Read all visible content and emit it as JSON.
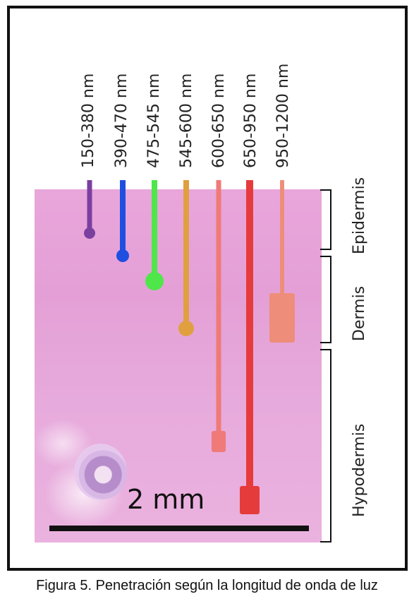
{
  "figure": {
    "wavelength_bands": [
      {
        "label": "150-380 nm",
        "color": "#7b3fa0",
        "depth_layer": "Epidermis",
        "tip": "dot"
      },
      {
        "label": "390-470 nm",
        "color": "#1f4fe0",
        "depth_layer": "Epidermis",
        "tip": "dot"
      },
      {
        "label": "475-545 nm",
        "color": "#4fe64a",
        "depth_layer": "Dermis",
        "tip": "dot"
      },
      {
        "label": "545-600 nm",
        "color": "#e0a040",
        "depth_layer": "Dermis",
        "tip": "dot"
      },
      {
        "label": "600-650 nm",
        "color": "#ef7a78",
        "depth_layer": "Hypodermis",
        "tip": "block"
      },
      {
        "label": "650-950 nm",
        "color": "#e63b3b",
        "depth_layer": "Hypodermis",
        "tip": "block"
      },
      {
        "label": "950-1200 nm",
        "color": "#ee8e7a",
        "depth_layer": "Dermis",
        "tip": "block"
      }
    ],
    "layers": [
      "Epidermis",
      "Dermis",
      "Hypodermis"
    ],
    "scale_bar": "2 mm"
  },
  "caption": "Figura 5. Penetración según la longitud de onda de luz"
}
